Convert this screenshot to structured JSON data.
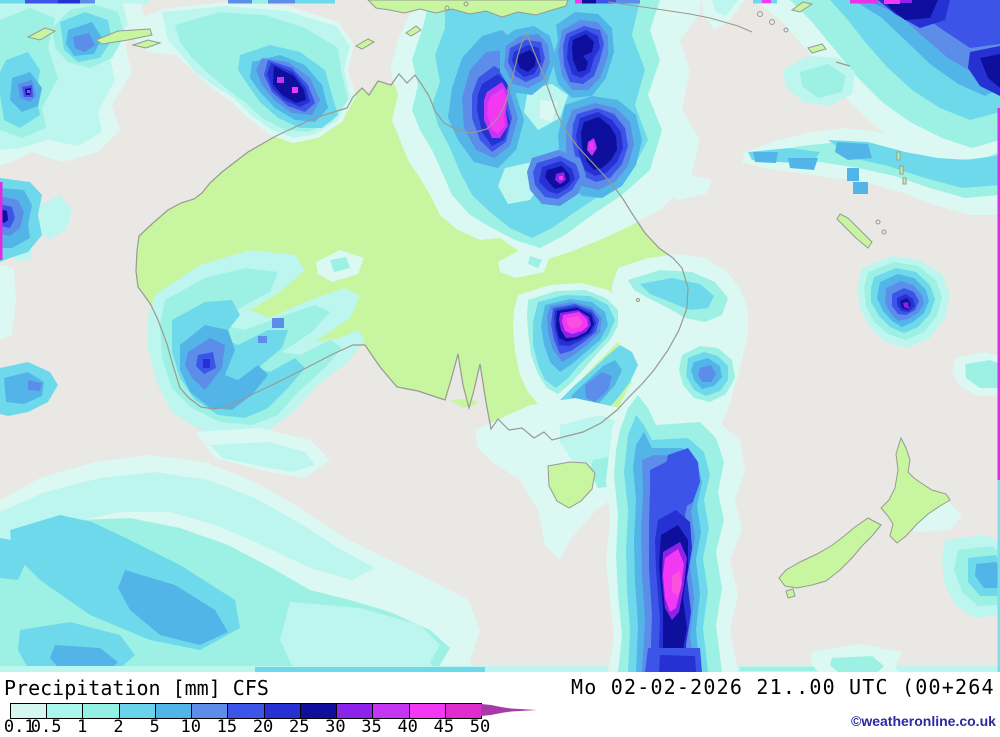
{
  "legend": {
    "title": "Precipitation [mm] CFS",
    "parameter": "Precipitation",
    "unit": "[mm]",
    "model": "CFS",
    "datetime": "Mo 02-02-2026 21..00 UTC (00+264",
    "watermark": "©weatheronline.co.uk",
    "scale": {
      "labels": [
        "0.1",
        "0.5",
        "1",
        "2",
        "5",
        "10",
        "15",
        "20",
        "25",
        "30",
        "35",
        "40",
        "45",
        "50"
      ],
      "colors": [
        "#d6f7f0",
        "#aaf5ec",
        "#93f0e3",
        "#68d3ea",
        "#53b5e7",
        "#5b8de9",
        "#3c55e8",
        "#2531d2",
        "#0f0f9e",
        "#8d23ea",
        "#c436f2",
        "#f238f2",
        "#df2cce"
      ],
      "arrow_color": "#a83aa8"
    }
  }
}
